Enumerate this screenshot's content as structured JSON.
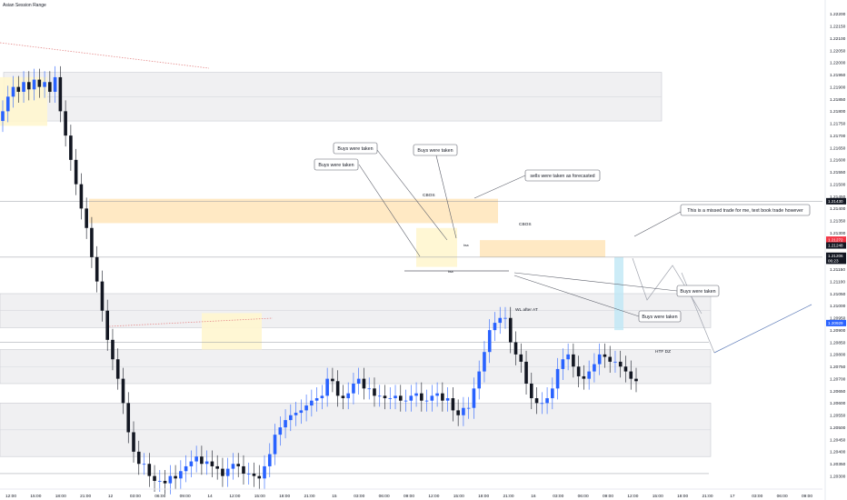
{
  "colors": {
    "background": "#ffffff",
    "candle_up": "#2962ff",
    "candle_down": "#131722",
    "zone_orange": "#ffe9c4",
    "zone_yellow": "#fff6cf",
    "zone_gray": "#f0f0f2",
    "zone_gray_border": "#c8cad0",
    "forecast_line": "#5d7bb8",
    "projection_line": "#a0a4ae",
    "red_label": "#f23645",
    "blue_label": "#2962ff",
    "dark_label": "#131722",
    "cyan_bar": "#bfe7f5",
    "dotted_red": "#e58a8a"
  },
  "chart_data": {
    "type": "candlestick",
    "title": "Asian Session Range",
    "ylim": [
      1.2025,
      1.2225
    ],
    "y_ticks": [
      "1.22200",
      "1.22150",
      "1.22100",
      "1.22050",
      "1.22000",
      "1.21950",
      "1.21900",
      "1.21850",
      "1.21800",
      "1.21750",
      "1.21700",
      "1.21650",
      "1.21600",
      "1.21550",
      "1.21500",
      "1.21450",
      "1.21400",
      "1.21350",
      "1.21300",
      "1.21250",
      "1.21200",
      "1.21150",
      "1.21100",
      "1.21050",
      "1.21000",
      "1.20950",
      "1.20900",
      "1.20850",
      "1.20800",
      "1.20750",
      "1.20700",
      "1.20650",
      "1.20600",
      "1.20550",
      "1.20500",
      "1.20450",
      "1.20400",
      "1.20350",
      "1.20300"
    ],
    "x_ticks": [
      "12:00",
      "15:00",
      "18:00",
      "21:00",
      "12",
      "03:00",
      "06:00",
      "09:00",
      "14",
      "12:00",
      "15:00",
      "18:00",
      "21:00",
      "15",
      "03:00",
      "06:00",
      "09:00",
      "12:00",
      "15:00",
      "18:00",
      "21:00",
      "16",
      "03:00",
      "06:00",
      "09:00",
      "12:00",
      "15:00",
      "18:00",
      "21:00",
      "17",
      "03:00",
      "06:00",
      "09:00"
    ],
    "price_labels": [
      {
        "value": "1.21430",
        "style": "dark"
      },
      {
        "value": "1.21272",
        "style": "red"
      },
      {
        "value": "1.21248",
        "style": "dark"
      },
      {
        "value": "1.21206",
        "style": "dark"
      },
      {
        "value": "06:23",
        "style": "dark"
      },
      {
        "value": "1.20929",
        "style": "blue"
      }
    ],
    "close_series": [
      1.218,
      1.2186,
      1.219,
      1.2188,
      1.2192,
      1.2189,
      1.2193,
      1.219,
      1.2192,
      1.2188,
      1.2194,
      1.218,
      1.217,
      1.216,
      1.215,
      1.214,
      1.2132,
      1.212,
      1.211,
      1.2098,
      1.2086,
      1.2078,
      1.207,
      1.206,
      1.2048,
      1.204,
      1.2035,
      1.2035,
      1.203,
      1.2028,
      1.2028,
      1.2027,
      1.203,
      1.2029,
      1.2032,
      1.2034,
      1.2036,
      1.2038,
      1.2035,
      1.2036,
      1.2034,
      1.2033,
      1.203,
      1.2033,
      1.2035,
      1.2034,
      1.2031,
      1.2031,
      1.203,
      1.2029,
      1.2034,
      1.2039,
      1.2047,
      1.205,
      1.2053,
      1.2055,
      1.2056,
      1.2057,
      1.2059,
      1.2061,
      1.2062,
      1.2063,
      1.207,
      1.2069,
      1.2063,
      1.2062,
      1.2064,
      1.2068,
      1.207,
      1.2066,
      1.2066,
      1.2063,
      1.2063,
      1.2062,
      1.2062,
      1.2063,
      1.2061,
      1.2061,
      1.2063,
      1.2064,
      1.2061,
      1.2061,
      1.2063,
      1.2064,
      1.2061,
      1.2062,
      1.2057,
      1.2055,
      1.2058,
      1.2058,
      1.2066,
      1.2073,
      1.2081,
      1.209,
      1.2093,
      1.2095,
      1.2095,
      1.2085,
      1.208,
      1.2077,
      1.2068,
      1.2062,
      1.206,
      1.206,
      1.2062,
      1.2066,
      1.2074,
      1.2078,
      1.208,
      1.2075,
      1.2071,
      1.207,
      1.2073,
      1.2076,
      1.208,
      1.2079,
      1.2077,
      1.2077,
      1.2075,
      1.2073,
      1.207,
      1.2069
    ],
    "zones": [
      {
        "label": "",
        "kind": "gray",
        "y_top": 1.2196,
        "y_bottom": 1.2176
      },
      {
        "label": "CBOS",
        "kind": "orange",
        "y_top": 1.2144,
        "y_bottom": 1.2134
      },
      {
        "label": "CBOS",
        "kind": "orange",
        "y_top": 1.2127,
        "y_bottom": 1.212
      },
      {
        "label": "",
        "kind": "gray",
        "y_top": 1.2105,
        "y_bottom": 1.2091
      },
      {
        "label": "HTF DZ",
        "kind": "gray",
        "y_top": 1.2082,
        "y_bottom": 1.2068
      },
      {
        "label": "",
        "kind": "gray",
        "y_top": 1.206,
        "y_bottom": 1.2038
      }
    ],
    "annotations": [
      "Buys were taken",
      "Buys were taken",
      "Buys were taken",
      "sells were taken as forecasted",
      "This is a missed trade for me, text book trade however",
      "Buys were taken",
      "Buys were taken",
      "WL after AT",
      "CBOS",
      "CBOS",
      "HTF DZ",
      "bsa",
      "bsa"
    ]
  }
}
